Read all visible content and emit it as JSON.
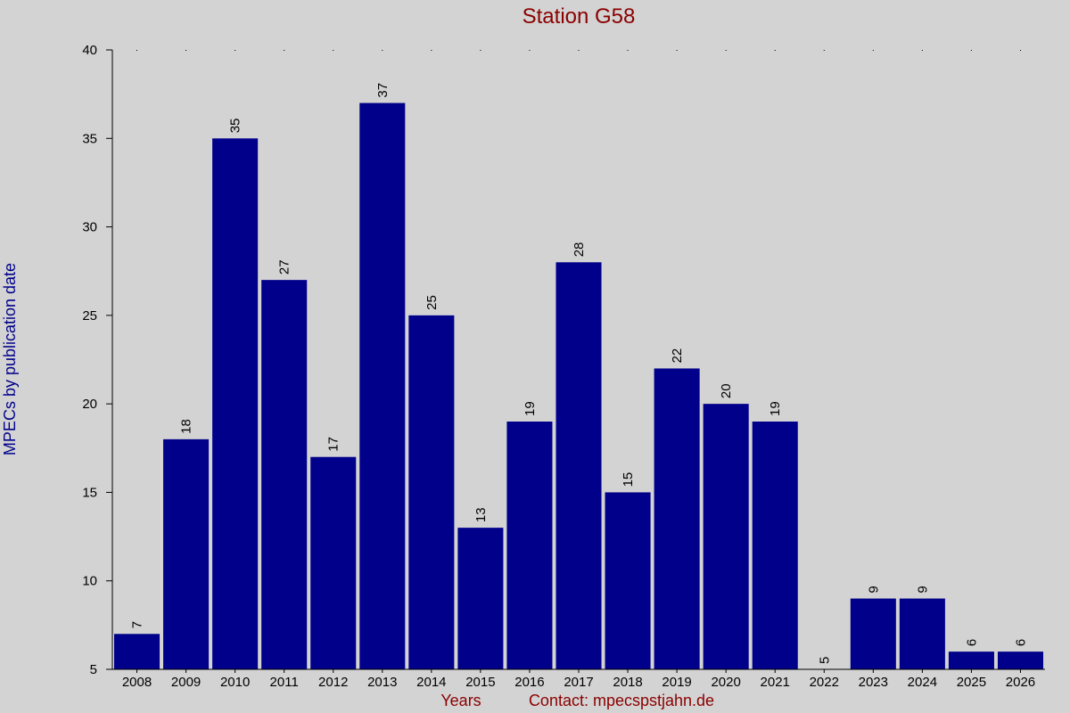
{
  "colors": {
    "background": "#d3d3d3",
    "bar": "#00008b",
    "title": "#8b0000",
    "ylabel": "#00008b",
    "footer": "#8b0000"
  },
  "chart_data": {
    "type": "bar",
    "title": "Station G58",
    "xlabel": "Years",
    "ylabel": "MPECs by publication date",
    "contact": "Contact: mpecspstjahn.de",
    "categories": [
      "2008",
      "2009",
      "2010",
      "2011",
      "2012",
      "2013",
      "2014",
      "2015",
      "2016",
      "2017",
      "2018",
      "2019",
      "2020",
      "2021",
      "2022",
      "2023",
      "2024",
      "2025",
      "2026"
    ],
    "values": [
      7,
      18,
      35,
      27,
      17,
      37,
      25,
      13,
      19,
      28,
      15,
      22,
      20,
      19,
      5,
      9,
      9,
      6,
      6
    ],
    "ylim": [
      5,
      40
    ],
    "yticks": [
      5,
      10,
      15,
      20,
      25,
      30,
      35,
      40
    ],
    "grid": "dotted at top",
    "legend": "none"
  }
}
